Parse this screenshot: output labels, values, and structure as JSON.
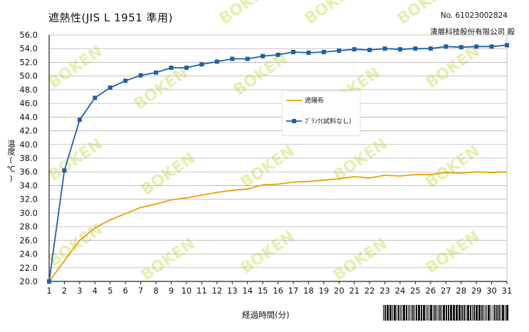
{
  "header": {
    "title": "遮熱性(JIS L 1951 準用)",
    "doc_no": "No. 61023002824",
    "company": "清展科技股份有限公司 殿"
  },
  "watermark": {
    "text": "BOKEN",
    "color": "#e6efb0"
  },
  "colors": {
    "series_blank": "#1f5fa8",
    "series_shade": "#e8a300",
    "grid": "#b5b5b5",
    "frame": "#222222"
  },
  "chart_data": {
    "type": "line",
    "xlabel": "経過時間(分)",
    "ylabel": "温度(℃)",
    "x": [
      1,
      2,
      3,
      4,
      5,
      6,
      7,
      8,
      9,
      10,
      11,
      12,
      13,
      14,
      15,
      16,
      17,
      18,
      19,
      20,
      21,
      22,
      23,
      24,
      25,
      26,
      27,
      28,
      29,
      30,
      31
    ],
    "ylim": [
      20.0,
      56.0
    ],
    "y_ticks": [
      "20.0",
      "22.0",
      "24.0",
      "26.0",
      "28.0",
      "30.0",
      "32.0",
      "34.0",
      "36.0",
      "38.0",
      "40.0",
      "42.0",
      "44.0",
      "46.0",
      "48.0",
      "50.0",
      "52.0",
      "54.0",
      "56.0"
    ],
    "grid": "horizontal",
    "legend_position": "center",
    "series": [
      {
        "name": "遮陽布",
        "marker": "none",
        "values": [
          20.0,
          23.0,
          26.0,
          27.8,
          29.0,
          29.9,
          30.8,
          31.3,
          31.9,
          32.2,
          32.6,
          33.0,
          33.3,
          33.5,
          34.1,
          34.2,
          34.5,
          34.6,
          34.8,
          35.0,
          35.3,
          35.1,
          35.5,
          35.4,
          35.6,
          35.6,
          35.9,
          35.8,
          36.0,
          35.9,
          36.0
        ]
      },
      {
        "name": "ﾌﾞﾗﾝｸ(試料なし)",
        "marker": "square",
        "values": [
          20.0,
          36.2,
          43.6,
          46.8,
          48.3,
          49.3,
          50.1,
          50.5,
          51.2,
          51.2,
          51.7,
          52.1,
          52.5,
          52.5,
          52.9,
          53.1,
          53.5,
          53.4,
          53.5,
          53.7,
          53.9,
          53.8,
          54.0,
          53.9,
          54.0,
          54.0,
          54.3,
          54.2,
          54.3,
          54.3,
          54.5
        ]
      }
    ]
  }
}
